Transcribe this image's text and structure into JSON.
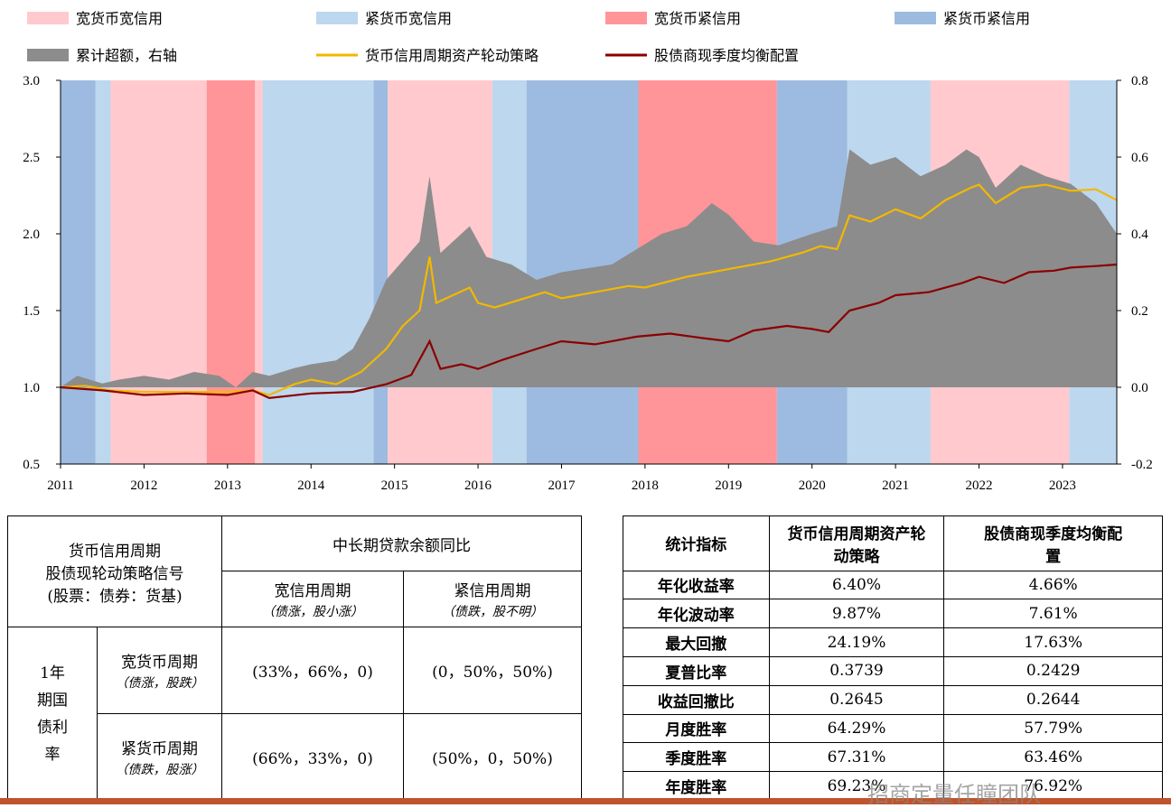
{
  "chart_data": {
    "type": "line",
    "x_range": [
      2011.0,
      2023.65
    ],
    "x_ticks": [
      2011,
      2012,
      2013,
      2014,
      2015,
      2016,
      2017,
      2018,
      2019,
      2020,
      2021,
      2022,
      2023
    ],
    "y_left": {
      "ylim": [
        0.5,
        3.0
      ],
      "ticks": [
        "0.5",
        "1.0",
        "1.5",
        "2.0",
        "2.5",
        "3.0"
      ]
    },
    "y_right": {
      "ylim": [
        -0.2,
        0.8
      ],
      "ticks": [
        "-0.2",
        "0.0",
        "0.2",
        "0.4",
        "0.6",
        "0.8"
      ]
    },
    "regime_legend": [
      {
        "key": "wide_money_wide_credit",
        "label": "宽货币宽信用",
        "color": "#ffc9ce"
      },
      {
        "key": "tight_money_wide_credit",
        "label": "紧货币宽信用",
        "color": "#bdd7ee"
      },
      {
        "key": "wide_money_tight_credit",
        "label": "宽货币紧信用",
        "color": "#ff9599"
      },
      {
        "key": "tight_money_tight_credit",
        "label": "紧货币紧信用",
        "color": "#9dbbe0"
      }
    ],
    "regimes": [
      {
        "start": 2011.0,
        "end": 2011.42,
        "type": "tight_money_tight_credit"
      },
      {
        "start": 2011.42,
        "end": 2011.6,
        "type": "tight_money_wide_credit"
      },
      {
        "start": 2011.6,
        "end": 2012.75,
        "type": "wide_money_wide_credit"
      },
      {
        "start": 2012.75,
        "end": 2013.33,
        "type": "wide_money_tight_credit"
      },
      {
        "start": 2013.33,
        "end": 2013.42,
        "type": "wide_money_wide_credit"
      },
      {
        "start": 2013.42,
        "end": 2014.75,
        "type": "tight_money_wide_credit"
      },
      {
        "start": 2014.75,
        "end": 2014.92,
        "type": "tight_money_tight_credit"
      },
      {
        "start": 2014.92,
        "end": 2016.17,
        "type": "wide_money_wide_credit"
      },
      {
        "start": 2016.17,
        "end": 2016.58,
        "type": "tight_money_wide_credit"
      },
      {
        "start": 2016.58,
        "end": 2017.92,
        "type": "tight_money_tight_credit"
      },
      {
        "start": 2017.92,
        "end": 2019.58,
        "type": "wide_money_tight_credit"
      },
      {
        "start": 2019.58,
        "end": 2020.42,
        "type": "tight_money_tight_credit"
      },
      {
        "start": 2020.42,
        "end": 2021.42,
        "type": "tight_money_wide_credit"
      },
      {
        "start": 2021.42,
        "end": 2023.08,
        "type": "wide_money_wide_credit"
      },
      {
        "start": 2023.08,
        "end": 2023.65,
        "type": "tight_money_wide_credit"
      }
    ],
    "series": [
      {
        "name": "累计超额，右轴",
        "axis": "right",
        "style": "area",
        "color": "#8c8c8c",
        "points": [
          [
            2011.0,
            0.0
          ],
          [
            2011.2,
            0.03
          ],
          [
            2011.5,
            0.01
          ],
          [
            2011.7,
            0.02
          ],
          [
            2012.0,
            0.03
          ],
          [
            2012.3,
            0.02
          ],
          [
            2012.6,
            0.04
          ],
          [
            2012.9,
            0.03
          ],
          [
            2013.1,
            0.0
          ],
          [
            2013.3,
            0.04
          ],
          [
            2013.5,
            0.03
          ],
          [
            2013.8,
            0.05
          ],
          [
            2014.0,
            0.06
          ],
          [
            2014.3,
            0.07
          ],
          [
            2014.5,
            0.1
          ],
          [
            2014.7,
            0.18
          ],
          [
            2014.9,
            0.28
          ],
          [
            2015.1,
            0.33
          ],
          [
            2015.3,
            0.38
          ],
          [
            2015.42,
            0.55
          ],
          [
            2015.55,
            0.35
          ],
          [
            2015.7,
            0.38
          ],
          [
            2015.9,
            0.42
          ],
          [
            2016.1,
            0.34
          ],
          [
            2016.4,
            0.32
          ],
          [
            2016.7,
            0.28
          ],
          [
            2017.0,
            0.3
          ],
          [
            2017.3,
            0.31
          ],
          [
            2017.6,
            0.32
          ],
          [
            2017.9,
            0.36
          ],
          [
            2018.2,
            0.4
          ],
          [
            2018.5,
            0.42
          ],
          [
            2018.8,
            0.48
          ],
          [
            2019.0,
            0.45
          ],
          [
            2019.3,
            0.38
          ],
          [
            2019.6,
            0.37
          ],
          [
            2020.0,
            0.4
          ],
          [
            2020.3,
            0.42
          ],
          [
            2020.45,
            0.62
          ],
          [
            2020.7,
            0.58
          ],
          [
            2021.0,
            0.6
          ],
          [
            2021.3,
            0.55
          ],
          [
            2021.6,
            0.58
          ],
          [
            2021.85,
            0.62
          ],
          [
            2022.0,
            0.6
          ],
          [
            2022.2,
            0.52
          ],
          [
            2022.5,
            0.58
          ],
          [
            2022.8,
            0.55
          ],
          [
            2023.1,
            0.53
          ],
          [
            2023.4,
            0.48
          ],
          [
            2023.65,
            0.4
          ]
        ]
      },
      {
        "name": "货币信用周期资产轮动策略",
        "axis": "left",
        "style": "line",
        "color": "#f2b800",
        "points": [
          [
            2011.0,
            1.0
          ],
          [
            2011.3,
            1.01
          ],
          [
            2011.6,
            0.98
          ],
          [
            2012.0,
            0.97
          ],
          [
            2012.5,
            0.97
          ],
          [
            2013.0,
            0.97
          ],
          [
            2013.3,
            0.98
          ],
          [
            2013.5,
            0.95
          ],
          [
            2013.8,
            1.02
          ],
          [
            2014.0,
            1.05
          ],
          [
            2014.3,
            1.02
          ],
          [
            2014.6,
            1.1
          ],
          [
            2014.9,
            1.25
          ],
          [
            2015.1,
            1.4
          ],
          [
            2015.3,
            1.5
          ],
          [
            2015.42,
            1.85
          ],
          [
            2015.5,
            1.55
          ],
          [
            2015.7,
            1.6
          ],
          [
            2015.9,
            1.65
          ],
          [
            2016.0,
            1.55
          ],
          [
            2016.2,
            1.52
          ],
          [
            2016.5,
            1.57
          ],
          [
            2016.8,
            1.62
          ],
          [
            2017.0,
            1.58
          ],
          [
            2017.4,
            1.62
          ],
          [
            2017.8,
            1.66
          ],
          [
            2018.0,
            1.65
          ],
          [
            2018.5,
            1.72
          ],
          [
            2019.0,
            1.77
          ],
          [
            2019.5,
            1.82
          ],
          [
            2019.9,
            1.88
          ],
          [
            2020.1,
            1.92
          ],
          [
            2020.3,
            1.9
          ],
          [
            2020.45,
            2.12
          ],
          [
            2020.7,
            2.08
          ],
          [
            2021.0,
            2.16
          ],
          [
            2021.3,
            2.1
          ],
          [
            2021.6,
            2.22
          ],
          [
            2021.9,
            2.3
          ],
          [
            2022.0,
            2.32
          ],
          [
            2022.2,
            2.2
          ],
          [
            2022.5,
            2.3
          ],
          [
            2022.8,
            2.32
          ],
          [
            2023.1,
            2.28
          ],
          [
            2023.4,
            2.29
          ],
          [
            2023.65,
            2.22
          ]
        ]
      },
      {
        "name": "股债商现季度均衡配置",
        "axis": "left",
        "style": "line",
        "color": "#8b0000",
        "points": [
          [
            2011.0,
            1.0
          ],
          [
            2011.5,
            0.98
          ],
          [
            2012.0,
            0.95
          ],
          [
            2012.5,
            0.96
          ],
          [
            2013.0,
            0.95
          ],
          [
            2013.3,
            0.98
          ],
          [
            2013.5,
            0.93
          ],
          [
            2014.0,
            0.96
          ],
          [
            2014.5,
            0.97
          ],
          [
            2014.9,
            1.02
          ],
          [
            2015.2,
            1.08
          ],
          [
            2015.42,
            1.3
          ],
          [
            2015.55,
            1.12
          ],
          [
            2015.8,
            1.15
          ],
          [
            2016.0,
            1.12
          ],
          [
            2016.3,
            1.18
          ],
          [
            2016.7,
            1.25
          ],
          [
            2017.0,
            1.3
          ],
          [
            2017.4,
            1.28
          ],
          [
            2017.9,
            1.33
          ],
          [
            2018.3,
            1.35
          ],
          [
            2018.7,
            1.32
          ],
          [
            2019.0,
            1.3
          ],
          [
            2019.3,
            1.37
          ],
          [
            2019.7,
            1.4
          ],
          [
            2020.0,
            1.38
          ],
          [
            2020.2,
            1.36
          ],
          [
            2020.45,
            1.5
          ],
          [
            2020.8,
            1.55
          ],
          [
            2021.0,
            1.6
          ],
          [
            2021.4,
            1.62
          ],
          [
            2021.8,
            1.68
          ],
          [
            2022.0,
            1.72
          ],
          [
            2022.3,
            1.68
          ],
          [
            2022.6,
            1.75
          ],
          [
            2022.9,
            1.76
          ],
          [
            2023.1,
            1.78
          ],
          [
            2023.4,
            1.79
          ],
          [
            2023.65,
            1.8
          ]
        ]
      }
    ]
  },
  "table_left": {
    "corner_line1": "货币信用周期",
    "corner_line2": "股债现轮动策略信号",
    "corner_line3": "(股票：债券：货基)",
    "col_group": "中长期贷款余额同比",
    "col1": "宽信用周期",
    "col1_sub": "（债涨，股小涨）",
    "col2": "紧信用周期",
    "col2_sub": "（债跌，股不明）",
    "row_group": "1年期国债利率",
    "row1": "宽货币周期",
    "row1_sub": "（债涨，股跌）",
    "row2": "紧货币周期",
    "row2_sub": "（债跌，股涨）",
    "r1c1": "(33%，66%，0)",
    "r1c2": "(0，50%，50%)",
    "r2c1": "(66%，33%，0)",
    "r2c2": "(50%，0，50%)"
  },
  "table_right": {
    "h0": "统计指标",
    "h1": "货币信用周期资产轮动策略",
    "h2": "股债商现季度均衡配置",
    "rows": [
      [
        "年化收益率",
        "6.40%",
        "4.66%"
      ],
      [
        "年化波动率",
        "9.87%",
        "7.61%"
      ],
      [
        "最大回撤",
        "24.19%",
        "17.63%"
      ],
      [
        "夏普比率",
        "0.3739",
        "0.2429"
      ],
      [
        "收益回撤比",
        "0.2645",
        "0.2644"
      ],
      [
        "月度胜率",
        "64.29%",
        "57.79%"
      ],
      [
        "季度胜率",
        "67.31%",
        "63.46%"
      ],
      [
        "年度胜率",
        "69.23%",
        "76.92%"
      ]
    ]
  },
  "watermark": "招商定量任瞳团队"
}
